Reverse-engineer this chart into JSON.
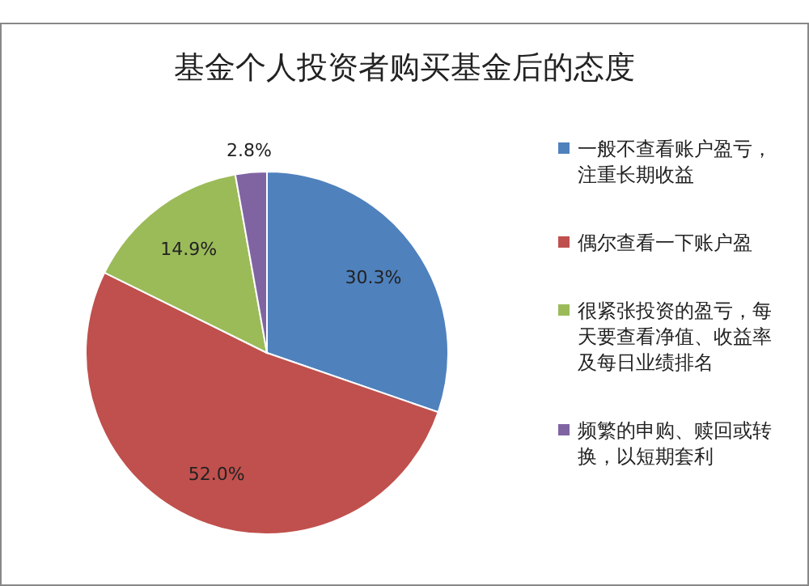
{
  "chart_data": {
    "type": "pie",
    "title": "基金个人投资者购买基金后的态度",
    "categories": [
      "一般不查看账户盈亏，注重长期收益",
      "偶尔查看一下账户盈",
      "很紧张投资的盈亏，每天要查看净值、收益率及每日业绩排名",
      "频繁的申购、赎回或转换，以短期套利"
    ],
    "values": [
      30.3,
      52.0,
      14.9,
      2.8
    ],
    "colors": [
      "#4f81bd",
      "#c0504d",
      "#9bbb59",
      "#8064a2"
    ],
    "value_labels": [
      "30.3%",
      "52.0%",
      "14.9%",
      "2.8%"
    ],
    "legend": "right"
  }
}
